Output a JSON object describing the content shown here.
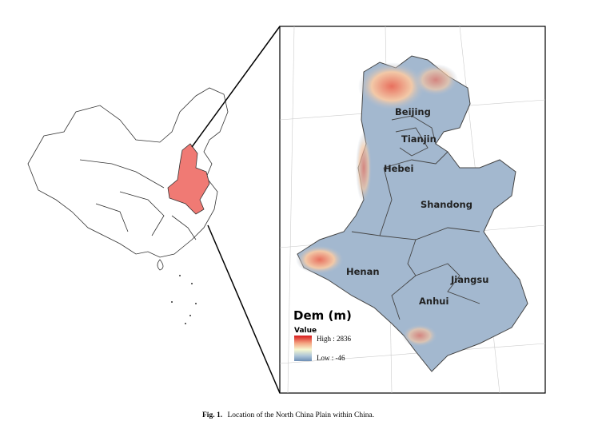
{
  "map": {
    "provinces": [
      "Beijing",
      "Tianjin",
      "Hebei",
      "Shandong",
      "Henan",
      "Jiangsu",
      "Anhui"
    ],
    "legend": {
      "title": "Dem (m)",
      "subtitle": "Value",
      "high": "High : 2836",
      "low": "Low : -46"
    },
    "caption": {
      "label": "Fig. 1.",
      "text": "Location of the North China Plain within China."
    }
  }
}
